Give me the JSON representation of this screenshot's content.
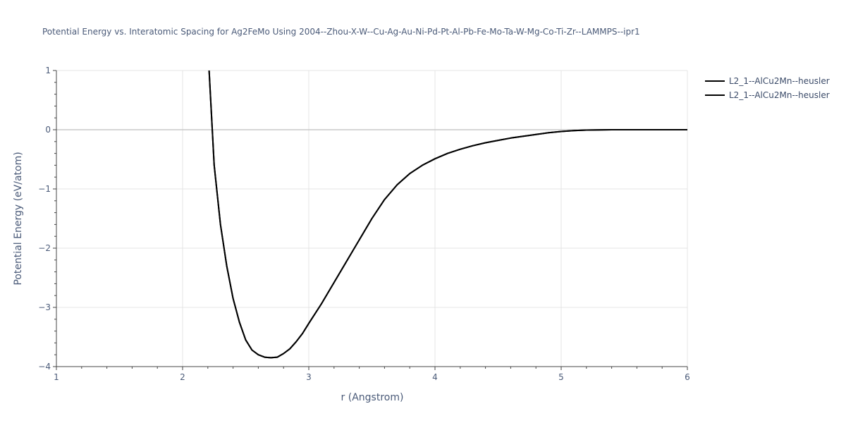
{
  "chart_data": {
    "type": "line",
    "title": "Potential Energy vs. Interatomic Spacing for Ag2FeMo Using 2004--Zhou-X-W--Cu-Ag-Au-Ni-Pd-Pt-Al-Pb-Fe-Mo-Ta-W-Mg-Co-Ti-Zr--LAMMPS--ipr1",
    "xlabel": "r (Angstrom)",
    "ylabel": "Potential Energy (eV/atom)",
    "xlim": [
      1,
      6
    ],
    "ylim": [
      -4,
      1
    ],
    "xticks": [
      1,
      2,
      3,
      4,
      5,
      6
    ],
    "yticks": [
      1,
      0,
      -1,
      -2,
      -3,
      -4
    ],
    "xtick_labels": [
      "1",
      "2",
      "3",
      "4",
      "5",
      "6"
    ],
    "ytick_labels": [
      "1",
      "0",
      "−1",
      "−2",
      "−3",
      "−4"
    ],
    "grid": true,
    "legend_position": "top-right",
    "series": [
      {
        "name": "L2_1--AlCu2Mn--heusler",
        "color": "#000000",
        "x": [
          2.21,
          2.25,
          2.3,
          2.35,
          2.4,
          2.45,
          2.5,
          2.55,
          2.6,
          2.65,
          2.7,
          2.75,
          2.8,
          2.85,
          2.9,
          2.95,
          3.0,
          3.1,
          3.2,
          3.3,
          3.4,
          3.5,
          3.6,
          3.7,
          3.8,
          3.9,
          4.0,
          4.1,
          4.2,
          4.3,
          4.4,
          4.5,
          4.6,
          4.7,
          4.8,
          4.9,
          5.0,
          5.1,
          5.2,
          5.3,
          5.4,
          5.5,
          5.7,
          6.0
        ],
        "y": [
          1.0,
          -0.6,
          -1.6,
          -2.3,
          -2.85,
          -3.25,
          -3.55,
          -3.72,
          -3.8,
          -3.84,
          -3.85,
          -3.84,
          -3.78,
          -3.7,
          -3.58,
          -3.44,
          -3.27,
          -2.94,
          -2.58,
          -2.22,
          -1.86,
          -1.5,
          -1.18,
          -0.93,
          -0.74,
          -0.6,
          -0.49,
          -0.4,
          -0.33,
          -0.27,
          -0.22,
          -0.18,
          -0.14,
          -0.11,
          -0.08,
          -0.05,
          -0.03,
          -0.015,
          -0.006,
          -0.002,
          0.0,
          0.0,
          0.0,
          0.0
        ]
      },
      {
        "name": "L2_1--AlCu2Mn--heusler",
        "color": "#000000",
        "x": [
          2.21,
          2.25,
          2.3,
          2.35,
          2.4,
          2.45,
          2.5,
          2.55,
          2.6,
          2.65,
          2.7,
          2.75,
          2.8,
          2.85,
          2.9,
          2.95,
          3.0,
          3.1,
          3.2,
          3.3,
          3.4,
          3.5,
          3.6,
          3.7,
          3.8,
          3.9,
          4.0,
          4.1,
          4.2,
          4.3,
          4.4,
          4.5,
          4.6,
          4.7,
          4.8,
          4.9,
          5.0,
          5.1,
          5.2,
          5.3,
          5.4,
          5.5,
          5.7,
          6.0
        ],
        "y": [
          1.0,
          -0.6,
          -1.6,
          -2.3,
          -2.85,
          -3.25,
          -3.55,
          -3.72,
          -3.8,
          -3.84,
          -3.85,
          -3.84,
          -3.78,
          -3.7,
          -3.58,
          -3.44,
          -3.27,
          -2.94,
          -2.58,
          -2.22,
          -1.86,
          -1.5,
          -1.18,
          -0.93,
          -0.74,
          -0.6,
          -0.49,
          -0.4,
          -0.33,
          -0.27,
          -0.22,
          -0.18,
          -0.14,
          -0.11,
          -0.08,
          -0.05,
          -0.03,
          -0.015,
          -0.006,
          -0.002,
          0.0,
          0.0,
          0.0,
          0.0
        ]
      }
    ]
  }
}
